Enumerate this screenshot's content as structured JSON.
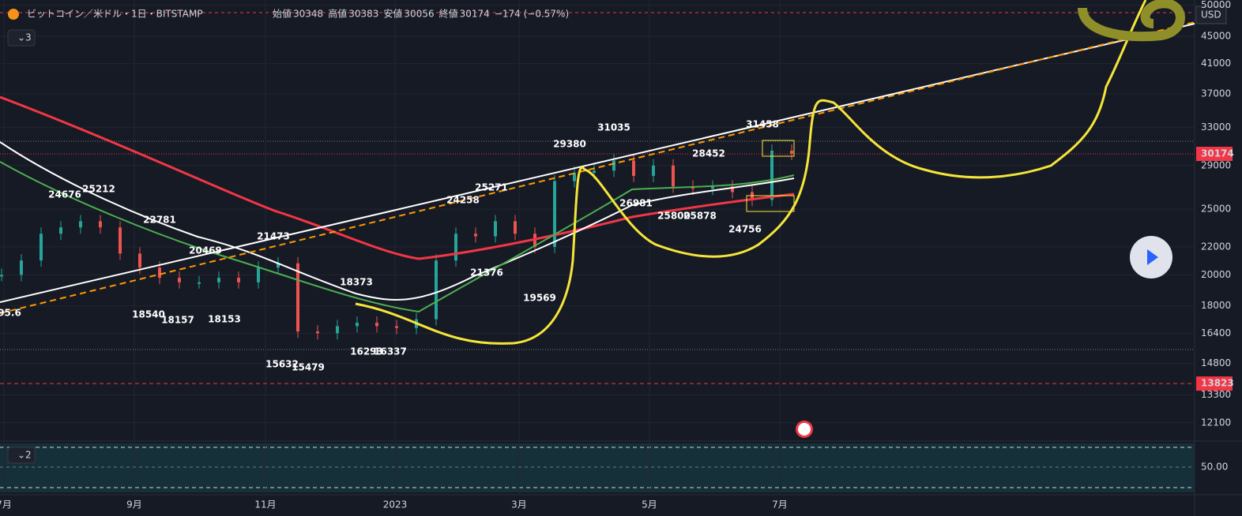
{
  "header": {
    "symbol": "ビットコイン／米ドル・1日・BITSTAMP",
    "ohlc": [
      {
        "label": "始値",
        "value": 30348
      },
      {
        "label": "高値",
        "value": 30383
      },
      {
        "label": "安値",
        "value": 30056
      },
      {
        "label": "終値",
        "value": 30174
      }
    ],
    "change": "−174 (−0.57%)"
  },
  "panes": {
    "main_count": "3",
    "volume_count": "2"
  },
  "currency": "USD",
  "chart_data": {
    "type": "candlestick",
    "log_scale": true,
    "grid": true,
    "values": [
      20000,
      21000,
      23000,
      23500,
      24000,
      23500,
      21500,
      20500,
      19800,
      19500,
      19500,
      19800,
      19500,
      20500,
      20800,
      16500,
      16400,
      16800,
      17000,
      16800,
      16700,
      17200,
      21000,
      23000,
      22800,
      24000,
      23000,
      22000,
      27500,
      28300,
      28500,
      29500,
      28000,
      29000,
      27000,
      26800,
      27000,
      26500,
      25800,
      30500,
      30174
    ],
    "up_color": "#26a69a",
    "down_color": "#ef5350",
    "ylim": [
      11400,
      50900
    ],
    "yticks": [
      50000,
      45000,
      41000,
      37000,
      33000,
      29000,
      25000,
      22000,
      20000,
      18000,
      16400,
      14800,
      13300,
      12100
    ],
    "price_labels": [
      {
        "value": 30174,
        "color": "#f23645"
      },
      {
        "value": 13823,
        "color": "#f23645"
      }
    ],
    "x_labels": [
      "7月",
      "9月",
      "11月",
      "2023",
      "3月",
      "5月",
      "7月"
    ],
    "annotations": [
      95.6,
      24676,
      25212,
      22781,
      21473,
      20469,
      18540,
      18157,
      18153,
      18373,
      15632,
      15479,
      16293,
      16337,
      25271,
      24258,
      21376,
      19569,
      29380,
      31035,
      26981,
      25800,
      25878,
      28452,
      31458,
      24756
    ],
    "volume_yticks": [
      {
        "value": 50,
        "label": "50.00"
      }
    ]
  }
}
